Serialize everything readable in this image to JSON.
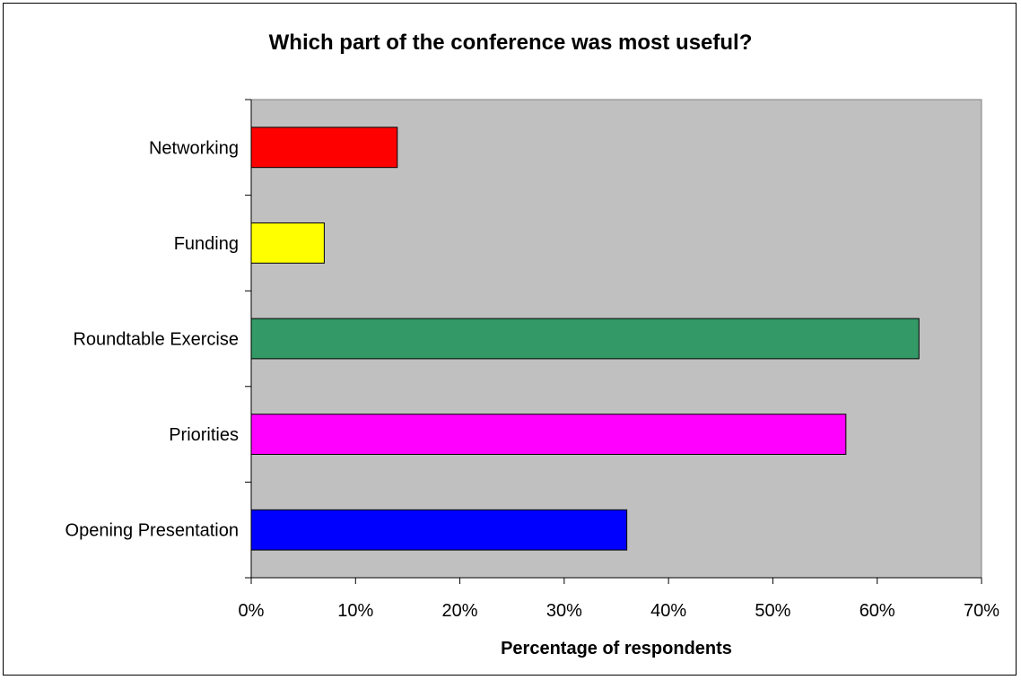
{
  "chart_data": {
    "type": "bar",
    "orientation": "horizontal",
    "title": "Which part of the conference was most useful?",
    "xlabel": "Percentage of respondents",
    "ylabel": "",
    "categories": [
      "Networking",
      "Funding",
      "Roundtable Exercise",
      "Priorities",
      "Opening Presentation"
    ],
    "values": [
      0.14,
      0.07,
      0.64,
      0.57,
      0.36
    ],
    "bar_colors": [
      "#ff0000",
      "#ffff00",
      "#339966",
      "#ff00ff",
      "#0000ff"
    ],
    "xlim": [
      0,
      0.7
    ],
    "x_ticks": [
      0,
      0.1,
      0.2,
      0.3,
      0.4,
      0.5,
      0.6,
      0.7
    ],
    "x_tick_labels": [
      "0%",
      "10%",
      "20%",
      "30%",
      "40%",
      "50%",
      "60%",
      "70%"
    ],
    "plot_background": "#c0c0c0",
    "grid": false,
    "legend": "none"
  }
}
